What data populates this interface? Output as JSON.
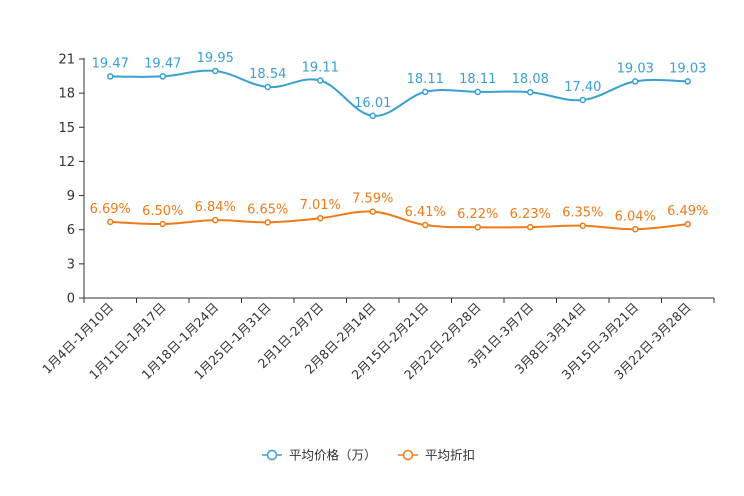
{
  "chart_data": {
    "type": "line",
    "categories": [
      "1月4日-1月10日",
      "1月11日-1月17日",
      "1月18日-1月24日",
      "1月25日-1月31日",
      "2月1日-2月7日",
      "2月8日-2月14日",
      "2月15日-2月21日",
      "2月22日-2月28日",
      "3月1日-3月7日",
      "3月8日-3月14日",
      "3月15日-3月21日",
      "3月22日-3月28日"
    ],
    "ylim": [
      0,
      21
    ],
    "yticks": [
      0,
      3,
      6,
      9,
      12,
      15,
      18,
      21
    ],
    "series": [
      {
        "name": "平均价格（万）",
        "color": "#3a9fd1",
        "values": [
          19.47,
          19.47,
          19.95,
          18.54,
          19.11,
          16.01,
          18.11,
          18.11,
          18.08,
          17.4,
          19.03,
          19.03
        ],
        "labels": [
          "19.47",
          "19.47",
          "19.95",
          "18.54",
          "19.11",
          "16.01",
          "18.11",
          "18.11",
          "18.08",
          "17.40",
          "19.03",
          "19.03"
        ]
      },
      {
        "name": "平均折扣",
        "color": "#f07a1a",
        "values": [
          6.69,
          6.5,
          6.84,
          6.65,
          7.01,
          7.59,
          6.41,
          6.22,
          6.23,
          6.35,
          6.04,
          6.49
        ],
        "labels": [
          "6.69%",
          "6.50%",
          "6.84%",
          "6.65%",
          "7.01%",
          "7.59%",
          "6.41%",
          "6.22%",
          "6.23%",
          "6.35%",
          "6.04%",
          "6.49%"
        ]
      }
    ],
    "legend": "bottom"
  }
}
